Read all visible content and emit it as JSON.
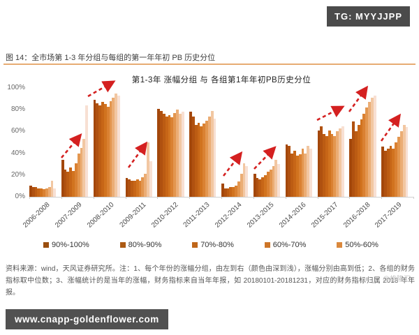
{
  "badges": {
    "tg": "TG: MYYJJPP",
    "site": "www.cnapp-goldenflower.com",
    "watermark": "@格隆汇"
  },
  "figure": {
    "caption": "图 14：全市场第 1-3 年分组与每组的第一年年初 PB 历史分位",
    "footnote": "资料来源：wind，天风证券研究所。注：1、每个年份的涨幅分组，由左到右（颜色由深到浅），涨幅分别由高到低；2、各组的财务指标取中位数；3、涨幅统计的是当年的涨幅，财务指标来自当年年报，如 20180101-20181231，对应的财务指标归属 2018 年年报。"
  },
  "chart_data": {
    "type": "bar",
    "title": "第1-3年 涨幅分组 与 各组第1年年初PB历史分位",
    "ylim": [
      0,
      100
    ],
    "y_ticks": [
      "0%",
      "20%",
      "40%",
      "60%",
      "80%",
      "100%"
    ],
    "grid": false,
    "legend_position": "bottom",
    "legend": [
      {
        "label": "90%-100%",
        "color": "#9a4e0f"
      },
      {
        "label": "80%-90%",
        "color": "#ac5a14"
      },
      {
        "label": "70%-80%",
        "color": "#bf661a"
      },
      {
        "label": "60%-70%",
        "color": "#cd7527"
      },
      {
        "label": "50%-60%",
        "color": "#da883c"
      }
    ],
    "bar_palette": [
      "#a3470b",
      "#b05110",
      "#bc5c13",
      "#c76617",
      "#d1731f",
      "#da8132",
      "#e3964f",
      "#ebad75",
      "#f2c7a2",
      "#f8e0d3"
    ],
    "categories": [
      "2006-2008",
      "2007-2009",
      "2008-2010",
      "2009-2011",
      "2010-2012",
      "2011-2013",
      "2012-2014",
      "2013-2015",
      "2014-2016",
      "2015-2017",
      "2016-2018",
      "2017-2019"
    ],
    "groups": [
      {
        "label": "2006-2008",
        "values": [
          10,
          9,
          9,
          8,
          8,
          7,
          8,
          9,
          15,
          8
        ]
      },
      {
        "label": "2007-2009",
        "values": [
          34,
          25,
          23,
          27,
          24,
          31,
          40,
          45,
          53,
          84
        ]
      },
      {
        "label": "2008-2010",
        "values": [
          89,
          86,
          84,
          87,
          85,
          83,
          88,
          91,
          95,
          93
        ]
      },
      {
        "label": "2009-2011",
        "values": [
          17,
          16,
          15,
          15,
          16,
          15,
          18,
          21,
          50,
          33
        ]
      },
      {
        "label": "2010-2012",
        "values": [
          81,
          79,
          76,
          74,
          75,
          73,
          77,
          80,
          76,
          78
        ]
      },
      {
        "label": "2011-2013",
        "values": [
          78,
          74,
          66,
          68,
          65,
          67,
          70,
          74,
          79,
          72
        ]
      },
      {
        "label": "2012-2014",
        "values": [
          12,
          8,
          8,
          9,
          9,
          10,
          14,
          21,
          31,
          28
        ]
      },
      {
        "label": "2013-2015",
        "values": [
          21,
          17,
          16,
          18,
          20,
          23,
          25,
          28,
          34,
          30
        ]
      },
      {
        "label": "2014-2016",
        "values": [
          48,
          47,
          40,
          42,
          38,
          39,
          44,
          40,
          47,
          44
        ]
      },
      {
        "label": "2015-2017",
        "values": [
          61,
          65,
          58,
          56,
          61,
          58,
          56,
          60,
          63,
          65
        ]
      },
      {
        "label": "2016-2018",
        "values": [
          53,
          69,
          60,
          66,
          71,
          76,
          82,
          87,
          91,
          93
        ]
      },
      {
        "label": "2017-2019",
        "values": [
          46,
          42,
          44,
          47,
          44,
          50,
          55,
          60,
          66,
          64
        ]
      }
    ],
    "annotations": {
      "trend_arrow_color": "#d42020",
      "trend_arrows_over": [
        "2007-2009",
        "2008-2010",
        "2009-2011",
        "2012-2014",
        "2013-2015",
        "2015-2017",
        "2016-2018",
        "2017-2019"
      ]
    }
  }
}
